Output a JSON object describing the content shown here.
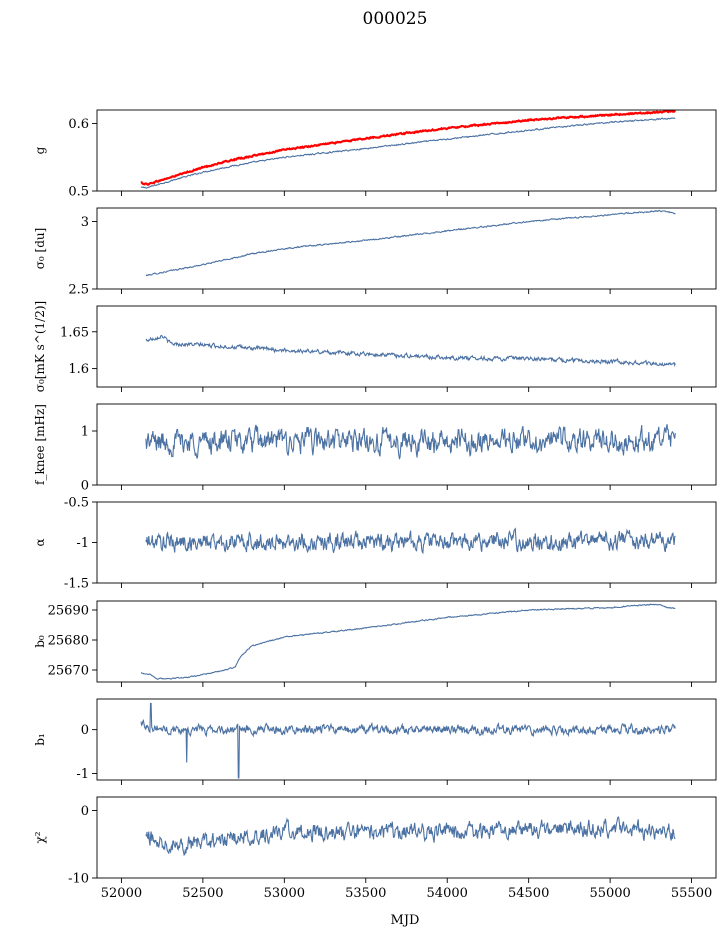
{
  "figure": {
    "title": "000025",
    "xlabel": "MJD"
  },
  "chart_data": {
    "type": "line",
    "title": "000025",
    "xlabel": "MJD",
    "xlim": [
      51850,
      55650
    ],
    "x_ticks": [
      52000,
      52500,
      53000,
      53500,
      54000,
      54500,
      55000,
      55500
    ],
    "x_range": [
      52120,
      55400
    ],
    "colors": {
      "series": "#4c72a3",
      "highlight": "#ff0000"
    },
    "panels": [
      {
        "id": "g",
        "ylabel": "g",
        "ylim": [
          0.5,
          0.62
        ],
        "yticks": [
          0.5,
          0.6
        ],
        "series": [
          {
            "color": "#4c72a3",
            "noise": 0.0008,
            "x": [
              52120,
              52160,
              52300,
              52500,
              52700,
              53000,
              53500,
              54000,
              54500,
              55000,
              55400
            ],
            "y": [
              0.505,
              0.505,
              0.515,
              0.528,
              0.538,
              0.55,
              0.563,
              0.577,
              0.59,
              0.602,
              0.608
            ]
          },
          {
            "color": "#ff0000",
            "width": 2.2,
            "noise": 0.0008,
            "x": [
              52120,
              52160,
              52300,
              52500,
              52700,
              53000,
              53500,
              54000,
              54500,
              55000,
              55400
            ],
            "y": [
              0.512,
              0.51,
              0.52,
              0.535,
              0.547,
              0.561,
              0.578,
              0.593,
              0.605,
              0.613,
              0.618
            ]
          }
        ]
      },
      {
        "id": "sigma0-du",
        "ylabel": "σ₀ [du]",
        "ylim": [
          2.5,
          3.1
        ],
        "yticks": [
          2.5,
          3.0
        ],
        "series": [
          {
            "color": "#4c72a3",
            "noise": 0.004,
            "x": [
              52150,
              52500,
              52800,
              53000,
              53500,
              54000,
              54500,
              55000,
              55300,
              55400
            ],
            "y": [
              2.6,
              2.68,
              2.76,
              2.8,
              2.86,
              2.93,
              3.0,
              3.05,
              3.08,
              3.06
            ]
          }
        ]
      },
      {
        "id": "sigma0-mks",
        "ylabel": "σ₀[mK s^(1/2)]",
        "ylim": [
          1.575,
          1.685
        ],
        "yticks": [
          1.6,
          1.65
        ],
        "series": [
          {
            "color": "#4c72a3",
            "noise": 0.0022,
            "x": [
              52150,
              52250,
              52300,
              52500,
              53000,
              53500,
              54000,
              54500,
              55000,
              55400
            ],
            "y": [
              1.638,
              1.645,
              1.634,
              1.632,
              1.625,
              1.62,
              1.615,
              1.613,
              1.61,
              1.605
            ]
          }
        ]
      },
      {
        "id": "fknee",
        "ylabel": "f_knee [mHz]",
        "ylim": [
          0,
          1.5
        ],
        "yticks": [
          0,
          1
        ],
        "series": [
          {
            "color": "#4c72a3",
            "noise": 0.18,
            "x": [
              52150,
              55400
            ],
            "y": [
              0.8,
              0.82
            ]
          }
        ]
      },
      {
        "id": "alpha",
        "ylabel": "α",
        "ylim": [
          -1.5,
          -0.5
        ],
        "yticks": [
          -1.5,
          -1.0,
          -0.5
        ],
        "series": [
          {
            "color": "#4c72a3",
            "noise": 0.09,
            "x": [
              52150,
              55400
            ],
            "y": [
              -1.0,
              -0.98
            ]
          }
        ]
      },
      {
        "id": "b0",
        "ylabel": "b₀",
        "ylim": [
          25666,
          25693
        ],
        "yticks": [
          25670,
          25680,
          25690
        ],
        "series": [
          {
            "color": "#4c72a3",
            "noise": 0.15,
            "x": [
              52120,
              52180,
              52220,
              52400,
              52600,
              52700,
              52720,
              52760,
              52800,
              53000,
              53500,
              54000,
              54500,
              55000,
              55300,
              55350,
              55400
            ],
            "y": [
              25669,
              25668.5,
              25667,
              25667.5,
              25669.5,
              25671,
              25673.5,
              25676,
              25678,
              25681,
              25684,
              25687.5,
              25690,
              25690.8,
              25692,
              25690.8,
              25690.5
            ]
          }
        ]
      },
      {
        "id": "b1",
        "ylabel": "b₁",
        "ylim": [
          -1.15,
          0.7
        ],
        "yticks": [
          -1,
          0
        ],
        "series": [
          {
            "color": "#4c72a3",
            "noise": 0.08,
            "x": [
              52120,
              52200,
              52300,
              55400
            ],
            "y": [
              0.15,
              0.05,
              0.0,
              0.0
            ]
          }
        ]
      },
      {
        "id": "chi2",
        "ylabel": "χ²",
        "ylim": [
          -10,
          2
        ],
        "yticks": [
          -10,
          0
        ],
        "series": [
          {
            "color": "#4c72a3",
            "noise": 1.0,
            "x": [
              52150,
              52400,
              52700,
              53000,
              53500,
              54000,
              54500,
              55000,
              55400
            ],
            "y": [
              -4,
              -5,
              -4.2,
              -3,
              -3.2,
              -3.1,
              -2.8,
              -2.6,
              -3.2
            ]
          }
        ]
      }
    ]
  }
}
